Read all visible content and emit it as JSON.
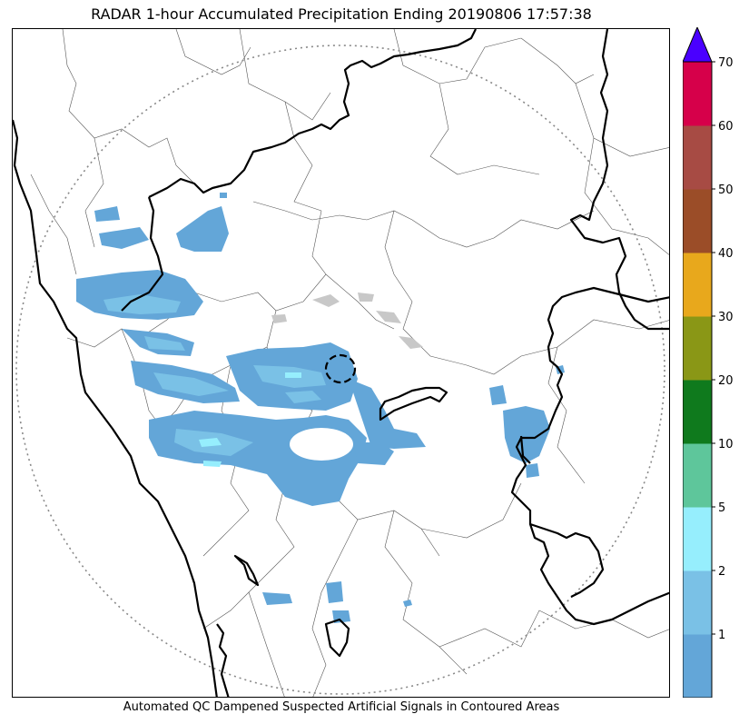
{
  "title": "RADAR 1-hour Accumulated Precipitation Ending 20190806 17:57:38",
  "footer_note": "Automated QC Dampened Suspected Artificial Signals in Contoured Areas",
  "colorbar": {
    "levels": [
      {
        "min": 0,
        "max": 1,
        "color": "#63a6d8"
      },
      {
        "min": 1,
        "max": 2,
        "color": "#7ac1e6"
      },
      {
        "min": 2,
        "max": 5,
        "color": "#96eefd"
      },
      {
        "min": 5,
        "max": 10,
        "color": "#5ec69b"
      },
      {
        "min": 10,
        "max": 20,
        "color": "#0f7a1d"
      },
      {
        "min": 20,
        "max": 30,
        "color": "#8a9716"
      },
      {
        "min": 30,
        "max": 40,
        "color": "#e8a81c"
      },
      {
        "min": 40,
        "max": 50,
        "color": "#9b4d28"
      },
      {
        "min": 50,
        "max": 60,
        "color": "#a74b44"
      },
      {
        "min": 60,
        "max": 70,
        "color": "#d6004a"
      }
    ],
    "tick_labels": [
      "1",
      "2",
      "5",
      "10",
      "20",
      "30",
      "40",
      "50",
      "60",
      "70"
    ],
    "extend_max_color": "#4a00ff"
  },
  "colors": {
    "precip_light": "#63a6d8",
    "precip_medium": "#7ac1e6",
    "precip_heavy": "#96eefd",
    "boundary_state": "#000000",
    "boundary_district": "#444444",
    "range_ring": "#888888",
    "clutter": "#c8c8c8"
  }
}
